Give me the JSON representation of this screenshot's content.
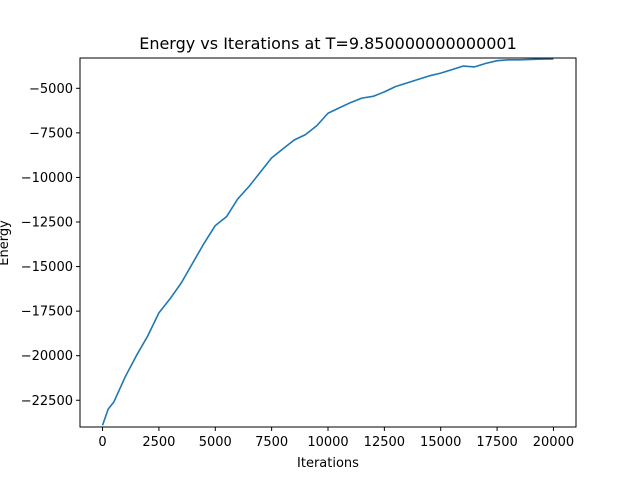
{
  "chart_data": {
    "type": "line",
    "title": "Energy vs Iterations at T=9.850000000000001",
    "xlabel": "Iterations",
    "ylabel": "Energy",
    "xlim": [
      -1000,
      21000
    ],
    "ylim": [
      -24000,
      -3300
    ],
    "xticks": [
      0,
      2500,
      5000,
      7500,
      10000,
      12500,
      15000,
      17500,
      20000
    ],
    "xtick_labels": [
      "0",
      "2500",
      "5000",
      "7500",
      "10000",
      "12500",
      "15000",
      "17500",
      "20000"
    ],
    "yticks": [
      -22500,
      -20000,
      -17500,
      -15000,
      -12500,
      -10000,
      -7500,
      -5000
    ],
    "ytick_labels": [
      "−22500",
      "−20000",
      "−17500",
      "−15000",
      "−12500",
      "−10000",
      "−7500",
      "−5000"
    ],
    "grid": false,
    "series": [
      {
        "color": "#1f77b4",
        "x": [
          0,
          250,
          500,
          1000,
          1500,
          2000,
          2500,
          3000,
          3500,
          4000,
          4500,
          5000,
          5500,
          6000,
          6500,
          7000,
          7500,
          8000,
          8500,
          9000,
          9500,
          10000,
          10500,
          11000,
          11500,
          12000,
          12500,
          13000,
          13500,
          14000,
          14500,
          15000,
          15500,
          16000,
          16500,
          17000,
          17500,
          18000,
          18500,
          19000,
          19500,
          20000
        ],
        "y": [
          -23900,
          -23000,
          -22600,
          -21200,
          -20000,
          -18900,
          -17600,
          -16800,
          -15900,
          -14800,
          -13700,
          -12700,
          -12200,
          -11200,
          -10500,
          -9700,
          -8900,
          -8400,
          -7900,
          -7600,
          -7100,
          -6400,
          -6100,
          -5800,
          -5550,
          -5450,
          -5200,
          -4900,
          -4700,
          -4500,
          -4300,
          -4150,
          -3950,
          -3750,
          -3800,
          -3600,
          -3450,
          -3400,
          -3400,
          -3380,
          -3360,
          -3350
        ]
      }
    ]
  }
}
